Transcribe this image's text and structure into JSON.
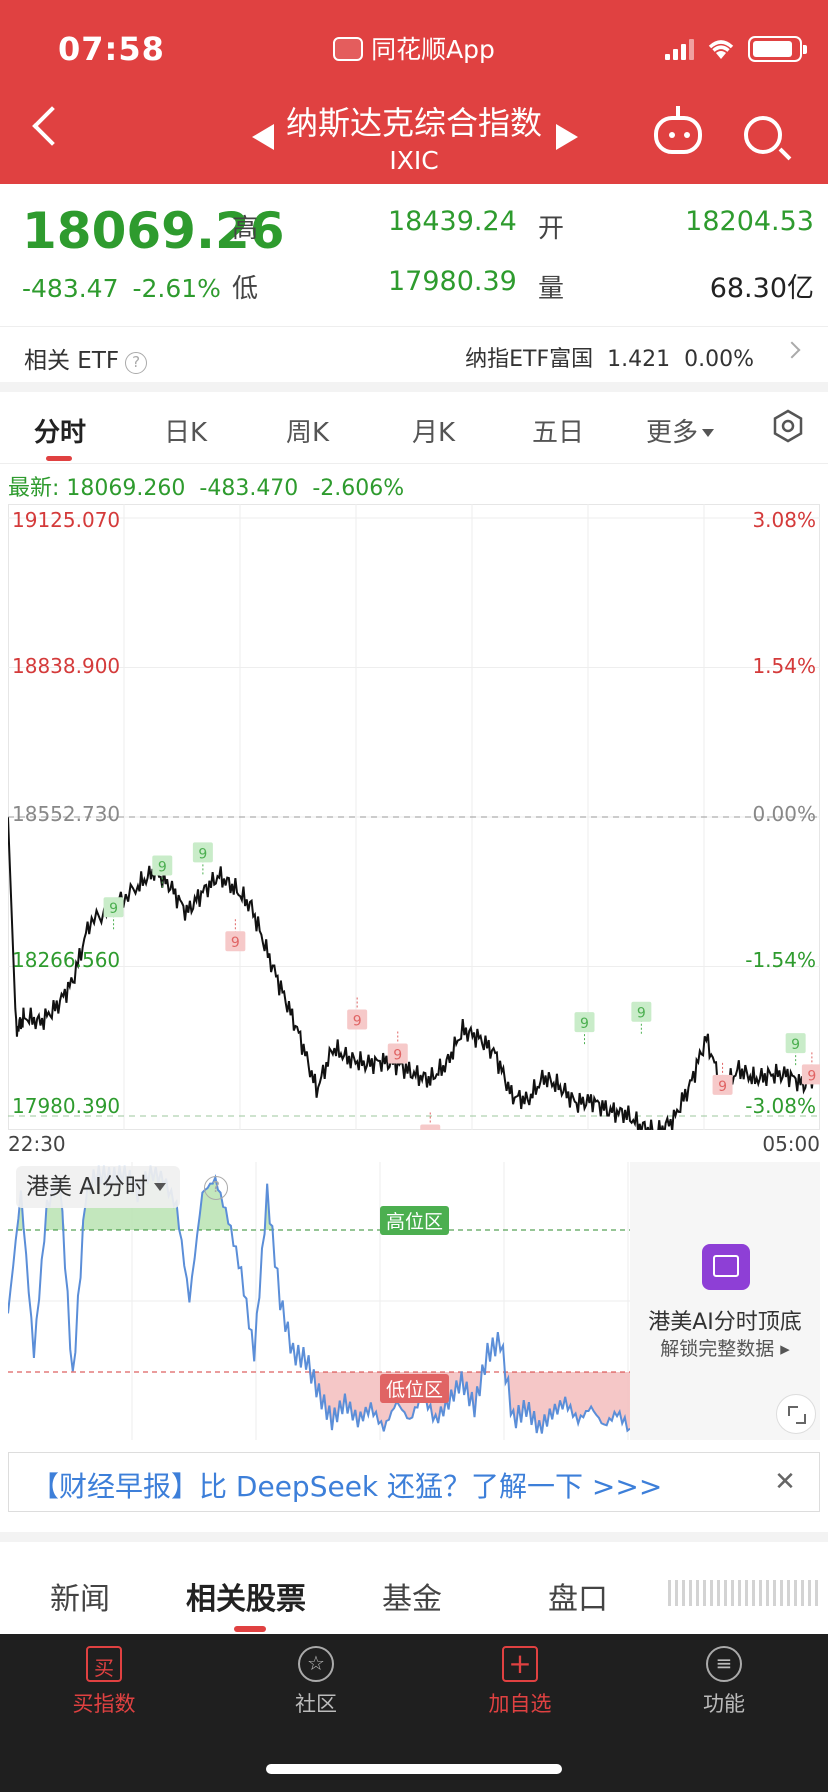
{
  "status": {
    "time": "07:58",
    "app": "同花顺App"
  },
  "nav": {
    "title": "纳斯达克综合指数",
    "code": "IXIC"
  },
  "quote": {
    "price": "18069.26",
    "change": "-483.47",
    "change_pct": "-2.61%",
    "high_label": "高",
    "high": "18439.24",
    "low_label": "低",
    "low": "17980.39",
    "open_label": "开",
    "open": "18204.53",
    "volume_label": "量",
    "volume": "68.30亿"
  },
  "etf": {
    "label": "相关 ETF",
    "help": "?",
    "name": "纳指ETF富国",
    "price": "1.421",
    "change": "0.00%"
  },
  "ktabs": [
    "分时",
    "日K",
    "周K",
    "月K",
    "五日",
    "更多"
  ],
  "latest": {
    "label": "最新: 18069.260",
    "chg": "-483.470",
    "pct": "-2.606%"
  },
  "chart_data": {
    "type": "line",
    "y_ticks": [
      "19125.070",
      "18838.900",
      "18552.730",
      "18266.560",
      "17980.390"
    ],
    "y_pct_ticks": [
      "3.08%",
      "1.54%",
      "0.00%",
      "-1.54%",
      "-3.08%"
    ],
    "x_labels": [
      "22:30",
      "05:00"
    ],
    "ylim": [
      17980.39,
      19125.07
    ],
    "prev_close": 18552.73,
    "low_ref": 17980.39,
    "x_fraction": [
      0,
      0.01,
      0.02,
      0.04,
      0.06,
      0.08,
      0.1,
      0.13,
      0.16,
      0.18,
      0.2,
      0.22,
      0.24,
      0.26,
      0.28,
      0.3,
      0.32,
      0.34,
      0.36,
      0.38,
      0.4,
      0.42,
      0.44,
      0.46,
      0.48,
      0.5,
      0.52,
      0.54,
      0.56,
      0.58,
      0.6,
      0.62,
      0.64,
      0.66,
      0.68,
      0.7,
      0.72,
      0.74,
      0.76,
      0.78,
      0.8,
      0.82,
      0.84,
      0.86,
      0.88,
      0.9,
      0.92,
      0.94,
      0.96,
      0.98,
      1
    ],
    "values": [
      18552,
      18145,
      18170,
      18160,
      18190,
      18240,
      18350,
      18380,
      18420,
      18450,
      18420,
      18370,
      18410,
      18440,
      18415,
      18380,
      18290,
      18210,
      18130,
      18030,
      18110,
      18090,
      18080,
      18085,
      18080,
      18060,
      18050,
      18080,
      18145,
      18130,
      18100,
      18020,
      18010,
      18055,
      18035,
      18005,
      18010,
      17990,
      17985,
      17960,
      17948,
      17975,
      18040,
      18130,
      18030,
      18070,
      18050,
      18060,
      18060,
      18040,
      18069
    ],
    "signal_up": [
      [
        0.13,
        18380
      ],
      [
        0.19,
        18460
      ],
      [
        0.24,
        18485
      ],
      [
        0.71,
        18160
      ],
      [
        0.78,
        18180
      ],
      [
        0.97,
        18120
      ]
    ],
    "signal_down": [
      [
        0.28,
        18315
      ],
      [
        0.43,
        18165
      ],
      [
        0.48,
        18100
      ],
      [
        0.52,
        17945
      ],
      [
        0.88,
        18040
      ],
      [
        0.99,
        18060
      ]
    ],
    "signal_label": "9"
  },
  "ai": {
    "label": "港美 AI分时",
    "high_zone": "高位区",
    "low_zone": "低位区",
    "promo_title": "港美AI分时顶底",
    "promo_sub": "解锁完整数据 ▸",
    "values": [
      0.45,
      0.9,
      0.3,
      0.85,
      0.95,
      0.2,
      0.9,
      0.98,
      0.95,
      0.98,
      0.9,
      0.98,
      0.95,
      0.85,
      0.5,
      0.9,
      0.95,
      0.8,
      0.6,
      0.3,
      0.9,
      0.5,
      0.3,
      0.28,
      0.15,
      0.05,
      0.12,
      0.05,
      0.1,
      0.02,
      0.12,
      0.05,
      0.15,
      0.05,
      0.12,
      0.2,
      0.1,
      0.3,
      0.35,
      0.05,
      0.1,
      0.02,
      0.08,
      0.12,
      0.05,
      0.1,
      0.03,
      0.08,
      0.02
    ]
  },
  "banner": {
    "text": "【财经早报】比 DeepSeek 还猛？了解一下 >>>"
  },
  "bottom_tabs": [
    "新闻",
    "相关股票",
    "基金",
    "盘口"
  ],
  "tabbar": [
    {
      "label": "买指数",
      "icon": "买"
    },
    {
      "label": "社区",
      "icon": "☆"
    },
    {
      "label": "加自选",
      "icon": "+"
    },
    {
      "label": "功能",
      "icon": "≡"
    }
  ],
  "colors": {
    "header": "#e04141",
    "down": "#2e9b2e",
    "up": "#d43a3a",
    "line": "#111111",
    "ai_line": "#5b8ed8"
  }
}
